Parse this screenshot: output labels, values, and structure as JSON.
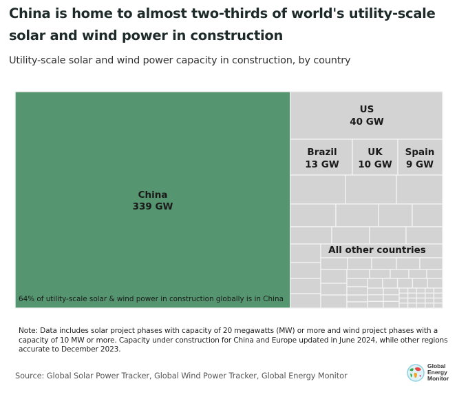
{
  "header": {
    "title": "China is home to almost two-thirds of world's utility-scale solar and wind power in construction",
    "subtitle": "Utility-scale solar and wind power capacity in construction, by country"
  },
  "chart_data": {
    "type": "treemap",
    "title": "China is home to almost two-thirds of world's utility-scale solar and wind power in construction",
    "subtitle": "Utility-scale solar and wind power capacity in construction, by country",
    "unit": "GW",
    "items": [
      {
        "name": "China",
        "value": 339,
        "label": "339 GW",
        "color": "#55956f"
      },
      {
        "name": "US",
        "value": 40,
        "label": "40 GW",
        "color": "#d3d3d3"
      },
      {
        "name": "Brazil",
        "value": 13,
        "label": "13 GW",
        "color": "#d3d3d3"
      },
      {
        "name": "UK",
        "value": 10,
        "label": "10 GW",
        "color": "#d3d3d3"
      },
      {
        "name": "Spain",
        "value": 9,
        "label": "9 GW",
        "color": "#d3d3d3"
      },
      {
        "name": "All other countries",
        "value": null,
        "label": "",
        "color": "#d3d3d3"
      }
    ],
    "annotation": "64% of utility-scale solar & wind power in construction globally is in China"
  },
  "footer": {
    "note": "Note: Data includes solar project phases with capacity of 20 megawatts (MW) or more and wind project phases with a capacity of 10 MW or more. Capacity under construction for China and Europe updated in June 2024, while other regions accurate to December 2023.",
    "source": "Source: Global Solar Power Tracker, Global Wind Power Tracker, Global Energy Monitor",
    "logo_lines": [
      "Global",
      "Energy",
      "Monitor"
    ]
  },
  "colors": {
    "china": "#55956f",
    "other": "#d3d3d3",
    "divider": "#f2f2f2"
  }
}
